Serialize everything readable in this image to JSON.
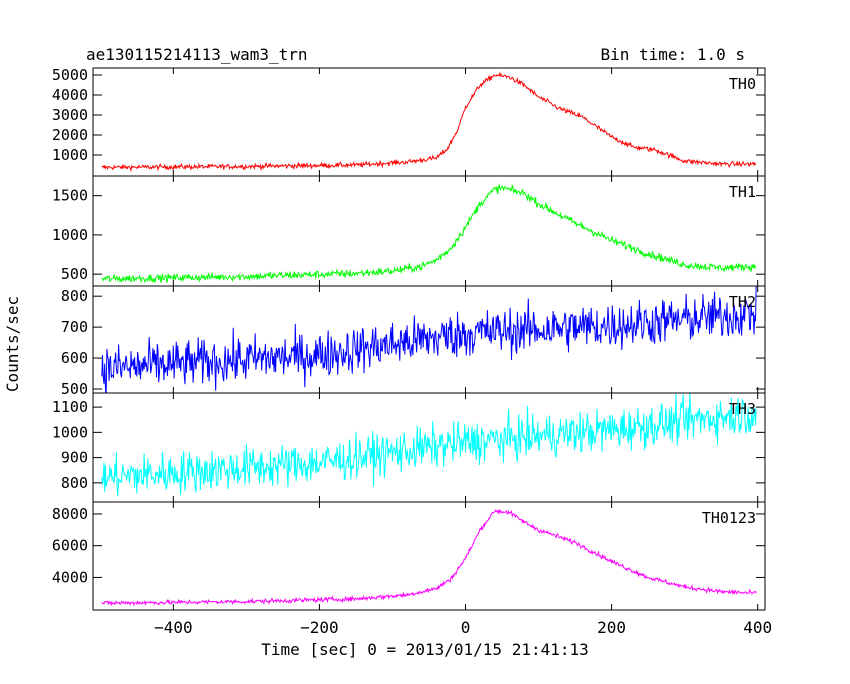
{
  "chart_data": {
    "type": "line",
    "title": "ae130115214113_wam3_trn",
    "subtitle": "Bin time: 1.0 s",
    "xlabel": "Time [sec] 0 = 2013/01/15 21:41:13",
    "ylabel": "Counts/sec",
    "xlim": [
      -510,
      410
    ],
    "x_ticks": [
      -400,
      -200,
      0,
      200,
      400
    ],
    "x_tick_labels": [
      "−400",
      "−200",
      "0",
      "200",
      "400"
    ],
    "grid": false,
    "panels": [
      {
        "name": "TH0",
        "color": "#ff0000",
        "ylim": [
          150,
          5150
        ],
        "y_ticks": [
          1000,
          2000,
          3000,
          4000,
          5000
        ],
        "y_tick_labels": [
          "1000",
          "2000",
          "3000",
          "4000",
          "5000"
        ],
        "noise": 60,
        "x": [
          -500,
          -300,
          -150,
          -80,
          -40,
          -25,
          -10,
          0,
          20,
          40,
          60,
          80,
          100,
          130,
          160,
          200,
          230,
          260,
          300,
          350,
          400
        ],
        "values": [
          380,
          430,
          500,
          650,
          850,
          1300,
          2300,
          3400,
          4500,
          5000,
          4900,
          4500,
          3900,
          3300,
          2900,
          1900,
          1400,
          1250,
          700,
          550,
          550
        ]
      },
      {
        "name": "TH1",
        "color": "#00ff00",
        "ylim": [
          400,
          1700
        ],
        "y_ticks": [
          500,
          1000,
          1500
        ],
        "y_tick_labels": [
          "500",
          "1000",
          "1500"
        ],
        "noise": 25,
        "x": [
          -500,
          -300,
          -150,
          -100,
          -60,
          -40,
          -20,
          0,
          20,
          40,
          50,
          80,
          100,
          150,
          200,
          250,
          300,
          350,
          400
        ],
        "values": [
          440,
          470,
          510,
          540,
          600,
          680,
          830,
          1100,
          1400,
          1580,
          1600,
          1530,
          1400,
          1150,
          930,
          760,
          620,
          580,
          600
        ]
      },
      {
        "name": "TH2",
        "color": "#0000ff",
        "ylim": [
          500,
          820
        ],
        "y_ticks": [
          500,
          600,
          700,
          800
        ],
        "y_tick_labels": [
          "500",
          "600",
          "700",
          "800"
        ],
        "noise": 38,
        "x": [
          -500,
          -200,
          0,
          200,
          400
        ],
        "values": [
          565,
          610,
          680,
          705,
          745
        ]
      },
      {
        "name": "TH3",
        "color": "#00ffff",
        "ylim": [
          740,
          1140
        ],
        "y_ticks": [
          800,
          900,
          1000,
          1100
        ],
        "y_tick_labels": [
          "800",
          "900",
          "1000",
          "1100"
        ],
        "noise": 42,
        "x": [
          -500,
          -200,
          0,
          200,
          400
        ],
        "values": [
          820,
          880,
          960,
          1010,
          1080
        ]
      },
      {
        "name": "TH0123",
        "color": "#ff00ff",
        "ylim": [
          2200,
          8500
        ],
        "y_ticks": [
          4000,
          6000,
          8000
        ],
        "y_tick_labels": [
          "4000",
          "6000",
          "8000"
        ],
        "noise": 70,
        "x": [
          -500,
          -300,
          -150,
          -80,
          -40,
          -20,
          0,
          20,
          40,
          60,
          80,
          100,
          150,
          200,
          250,
          300,
          350,
          400
        ],
        "values": [
          2380,
          2480,
          2650,
          2900,
          3300,
          3900,
          5200,
          7000,
          8200,
          8100,
          7500,
          7000,
          6200,
          5000,
          4000,
          3400,
          3100,
          3000
        ]
      }
    ]
  }
}
